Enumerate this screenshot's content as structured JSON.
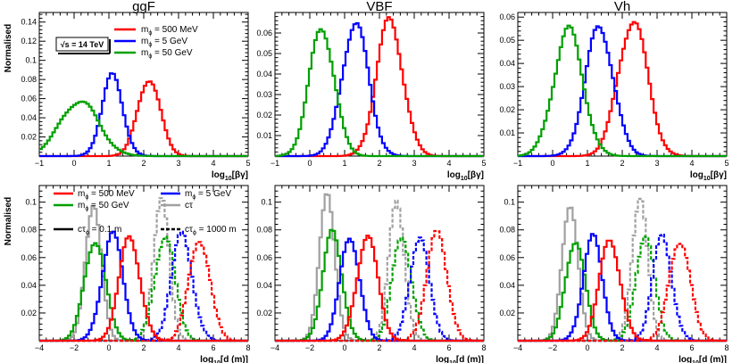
{
  "figure": {
    "y_label": "Normalised",
    "energy_box": "√s = 14 TeV",
    "colors": {
      "m500MeV": "#ff0000",
      "m5GeV": "#0000ff",
      "m50GeV": "#00a000",
      "ctau": "#a0a0a0",
      "axis": "#000000"
    }
  },
  "legends": {
    "top": [
      "mϕ = 500 MeV",
      "mϕ = 5 GeV",
      "mϕ = 50 GeV"
    ],
    "bottom": [
      "mϕ = 500 MeV",
      "mϕ = 5 GeV",
      "mϕ = 50 GeV",
      "cτ",
      "cτϕ = 0.1 m",
      "cτϕ = 1000 m"
    ]
  },
  "chart_data": [
    {
      "type": "line",
      "title": "ggF",
      "xlabel": "log10[βγ]",
      "ylabel": "Normalised",
      "xlim": [
        -1,
        5
      ],
      "ylim": [
        0,
        0.15
      ],
      "xticks": [
        "−1",
        "0",
        "1",
        "2",
        "3",
        "4",
        "5"
      ],
      "yticks": [
        "0.02",
        "0.04",
        "0.06",
        "0.08",
        "0.1",
        "0.12",
        "0.14"
      ],
      "series": [
        {
          "name": "mϕ = 500 MeV",
          "color": "#ff0000",
          "style": "solid",
          "peaks": [
            {
              "mu": 2.15,
              "sigma": 0.32,
              "height": 0.082
            }
          ]
        },
        {
          "name": "mϕ = 5 GeV",
          "color": "#0000ff",
          "style": "solid",
          "peaks": [
            {
              "mu": 1.1,
              "sigma": 0.3,
              "height": 0.083
            }
          ]
        },
        {
          "name": "mϕ = 50 GeV",
          "color": "#00a000",
          "style": "solid",
          "peaks": [
            {
              "mu": 0.15,
              "sigma": 0.55,
              "height": 0.058
            }
          ]
        }
      ]
    },
    {
      "type": "line",
      "title": "VBF",
      "xlabel": "log10[βγ]",
      "ylabel": "",
      "xlim": [
        -1,
        5
      ],
      "ylim": [
        0,
        0.07
      ],
      "xticks": [
        "−1",
        "0",
        "1",
        "2",
        "3",
        "4",
        "5"
      ],
      "yticks": [
        "0.01",
        "0.02",
        "0.03",
        "0.04",
        "0.05",
        "0.06"
      ],
      "series": [
        {
          "name": "mϕ = 500 MeV",
          "color": "#ff0000",
          "style": "solid",
          "peaks": [
            {
              "mu": 2.3,
              "sigma": 0.38,
              "height": 0.066
            }
          ]
        },
        {
          "name": "mϕ = 5 GeV",
          "color": "#0000ff",
          "style": "solid",
          "peaks": [
            {
              "mu": 1.3,
              "sigma": 0.38,
              "height": 0.065
            }
          ]
        },
        {
          "name": "mϕ = 50 GeV",
          "color": "#00a000",
          "style": "solid",
          "peaks": [
            {
              "mu": 0.35,
              "sigma": 0.36,
              "height": 0.063
            }
          ]
        }
      ]
    },
    {
      "type": "line",
      "title": "Vh",
      "xlabel": "log10[βγ]",
      "ylabel": "",
      "xlim": [
        -1,
        5
      ],
      "ylim": [
        0,
        0.062
      ],
      "xticks": [
        "−1",
        "0",
        "1",
        "2",
        "3",
        "4",
        "5"
      ],
      "yticks": [
        "0.01",
        "0.02",
        "0.03",
        "0.04",
        "0.05",
        "0.06"
      ],
      "series": [
        {
          "name": "mϕ = 500 MeV",
          "color": "#ff0000",
          "style": "solid",
          "peaks": [
            {
              "mu": 2.3,
              "sigma": 0.42,
              "height": 0.059
            }
          ]
        },
        {
          "name": "mϕ = 5 GeV",
          "color": "#0000ff",
          "style": "solid",
          "peaks": [
            {
              "mu": 1.35,
              "sigma": 0.4,
              "height": 0.056
            }
          ]
        },
        {
          "name": "mϕ = 50 GeV",
          "color": "#00a000",
          "style": "solid",
          "peaks": [
            {
              "mu": 0.45,
              "sigma": 0.42,
              "height": 0.054
            }
          ]
        }
      ]
    },
    {
      "type": "line",
      "title": "",
      "xlabel": "log10[d (m)]",
      "ylabel": "Normalised",
      "xlim": [
        -4,
        8
      ],
      "ylim": [
        0,
        0.112
      ],
      "xticks": [
        "−4",
        "−2",
        "0",
        "2",
        "4",
        "6",
        "8"
      ],
      "yticks": [
        "0.02",
        "0.04",
        "0.06",
        "0.08",
        "0.1"
      ],
      "series": [
        {
          "name": "cτ",
          "color": "#a0a0a0",
          "style": "solid",
          "peaks": [
            {
              "mu": -0.9,
              "sigma": 0.45,
              "height": 0.102
            }
          ]
        },
        {
          "name": "cτ",
          "color": "#a0a0a0",
          "style": "dashed",
          "peaks": [
            {
              "mu": 3.0,
              "sigma": 0.45,
              "height": 0.102
            }
          ]
        },
        {
          "name": "mϕ = 50 GeV",
          "color": "#00a000",
          "style": "solid",
          "peaks": [
            {
              "mu": -0.8,
              "sigma": 0.6,
              "height": 0.074
            }
          ]
        },
        {
          "name": "mϕ = 50 GeV",
          "color": "#00a000",
          "style": "dashed",
          "peaks": [
            {
              "mu": 3.2,
              "sigma": 0.6,
              "height": 0.074
            }
          ]
        },
        {
          "name": "mϕ = 5 GeV",
          "color": "#0000ff",
          "style": "solid",
          "peaks": [
            {
              "mu": 0.2,
              "sigma": 0.6,
              "height": 0.076
            }
          ]
        },
        {
          "name": "mϕ = 5 GeV",
          "color": "#0000ff",
          "style": "dashed",
          "peaks": [
            {
              "mu": 4.2,
              "sigma": 0.6,
              "height": 0.076
            }
          ]
        },
        {
          "name": "mϕ = 500 MeV",
          "color": "#ff0000",
          "style": "solid",
          "peaks": [
            {
              "mu": 1.2,
              "sigma": 0.6,
              "height": 0.075
            }
          ]
        },
        {
          "name": "mϕ = 500 MeV",
          "color": "#ff0000",
          "style": "dashed",
          "peaks": [
            {
              "mu": 5.2,
              "sigma": 0.6,
              "height": 0.075
            }
          ]
        }
      ]
    },
    {
      "type": "line",
      "title": "",
      "xlabel": "log10[d (m)]",
      "ylabel": "",
      "xlim": [
        -4,
        8
      ],
      "ylim": [
        0,
        0.112
      ],
      "xticks": [
        "−4",
        "−2",
        "0",
        "2",
        "4",
        "6",
        "8"
      ],
      "yticks": [
        "0.02",
        "0.04",
        "0.06",
        "0.08",
        "0.1"
      ],
      "series": [
        {
          "name": "cτ",
          "color": "#a0a0a0",
          "style": "solid",
          "peaks": [
            {
              "mu": -1.0,
              "sigma": 0.45,
              "height": 0.102
            }
          ]
        },
        {
          "name": "cτ",
          "color": "#a0a0a0",
          "style": "dashed",
          "peaks": [
            {
              "mu": 3.0,
              "sigma": 0.45,
              "height": 0.102
            }
          ]
        },
        {
          "name": "mϕ = 50 GeV",
          "color": "#00a000",
          "style": "solid",
          "peaks": [
            {
              "mu": -0.7,
              "sigma": 0.55,
              "height": 0.077
            }
          ]
        },
        {
          "name": "mϕ = 50 GeV",
          "color": "#00a000",
          "style": "dashed",
          "peaks": [
            {
              "mu": 3.3,
              "sigma": 0.55,
              "height": 0.076
            }
          ]
        },
        {
          "name": "mϕ = 5 GeV",
          "color": "#0000ff",
          "style": "solid",
          "peaks": [
            {
              "mu": 0.3,
              "sigma": 0.55,
              "height": 0.077
            }
          ]
        },
        {
          "name": "mϕ = 5 GeV",
          "color": "#0000ff",
          "style": "dashed",
          "peaks": [
            {
              "mu": 4.3,
              "sigma": 0.55,
              "height": 0.076
            }
          ]
        },
        {
          "name": "mϕ = 500 MeV",
          "color": "#ff0000",
          "style": "solid",
          "peaks": [
            {
              "mu": 1.3,
              "sigma": 0.6,
              "height": 0.075
            }
          ]
        },
        {
          "name": "mϕ = 500 MeV",
          "color": "#ff0000",
          "style": "dashed",
          "peaks": [
            {
              "mu": 5.3,
              "sigma": 0.6,
              "height": 0.076
            }
          ]
        }
      ]
    },
    {
      "type": "line",
      "title": "",
      "xlabel": "log10[d (m)]",
      "ylabel": "",
      "xlim": [
        -4,
        8
      ],
      "ylim": [
        0,
        0.112
      ],
      "xticks": [
        "−4",
        "−2",
        "0",
        "2",
        "4",
        "6",
        "8"
      ],
      "yticks": [
        "0.02",
        "0.04",
        "0.06",
        "0.08",
        "0.1"
      ],
      "series": [
        {
          "name": "cτ",
          "color": "#a0a0a0",
          "style": "solid",
          "peaks": [
            {
              "mu": -1.0,
              "sigma": 0.45,
              "height": 0.102
            }
          ]
        },
        {
          "name": "cτ",
          "color": "#a0a0a0",
          "style": "dashed",
          "peaks": [
            {
              "mu": 3.0,
              "sigma": 0.45,
              "height": 0.102
            }
          ]
        },
        {
          "name": "mϕ = 50 GeV",
          "color": "#00a000",
          "style": "solid",
          "peaks": [
            {
              "mu": -0.7,
              "sigma": 0.55,
              "height": 0.074
            }
          ]
        },
        {
          "name": "mϕ = 50 GeV",
          "color": "#00a000",
          "style": "dashed",
          "peaks": [
            {
              "mu": 3.3,
              "sigma": 0.55,
              "height": 0.074
            }
          ]
        },
        {
          "name": "mϕ = 5 GeV",
          "color": "#0000ff",
          "style": "solid",
          "peaks": [
            {
              "mu": 0.3,
              "sigma": 0.55,
              "height": 0.074
            }
          ]
        },
        {
          "name": "mϕ = 5 GeV",
          "color": "#0000ff",
          "style": "dashed",
          "peaks": [
            {
              "mu": 4.3,
              "sigma": 0.55,
              "height": 0.075
            }
          ]
        },
        {
          "name": "mϕ = 500 MeV",
          "color": "#ff0000",
          "style": "solid",
          "peaks": [
            {
              "mu": 1.3,
              "sigma": 0.6,
              "height": 0.073
            }
          ]
        },
        {
          "name": "mϕ = 500 MeV",
          "color": "#ff0000",
          "style": "dashed",
          "peaks": [
            {
              "mu": 5.3,
              "sigma": 0.6,
              "height": 0.074
            }
          ]
        }
      ]
    }
  ]
}
